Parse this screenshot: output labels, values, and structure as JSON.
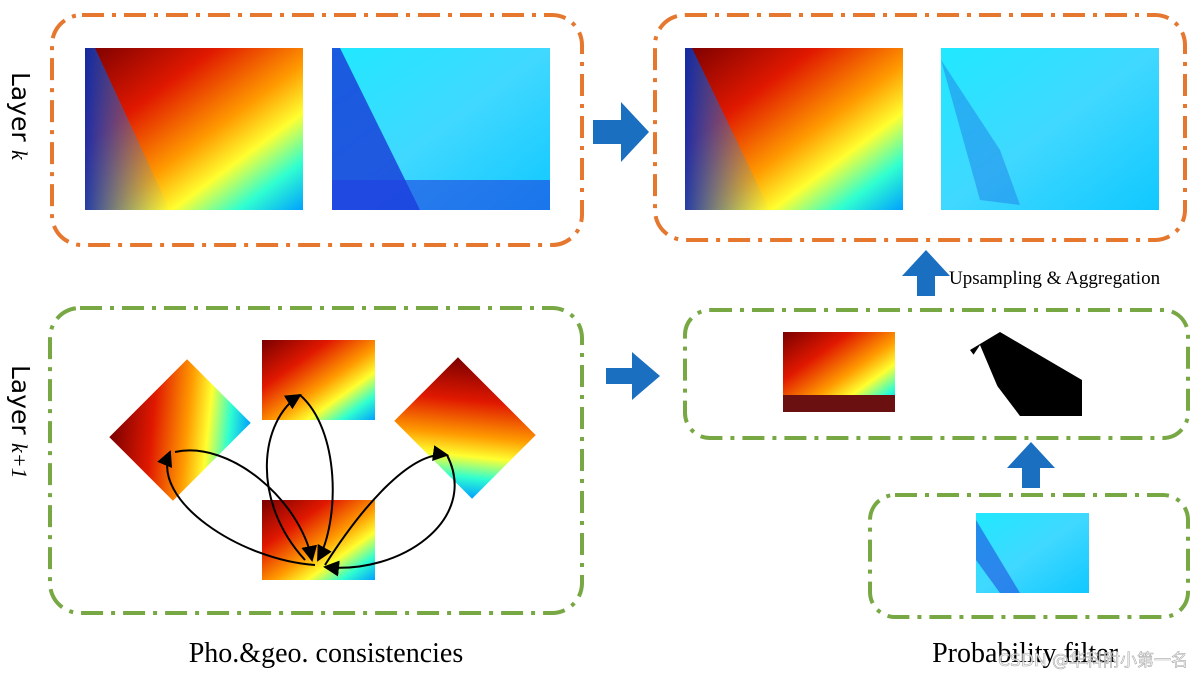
{
  "layers": [
    {
      "label": "Layer",
      "index": "k"
    },
    {
      "label": "Layer",
      "index": "k+1"
    }
  ],
  "annotations": {
    "upsampling": "Upsampling & Aggregation"
  },
  "captions": [
    "Pho.&geo. consistencies",
    "Probability filter"
  ],
  "watermark": "CSDN @华科附小第一名"
}
